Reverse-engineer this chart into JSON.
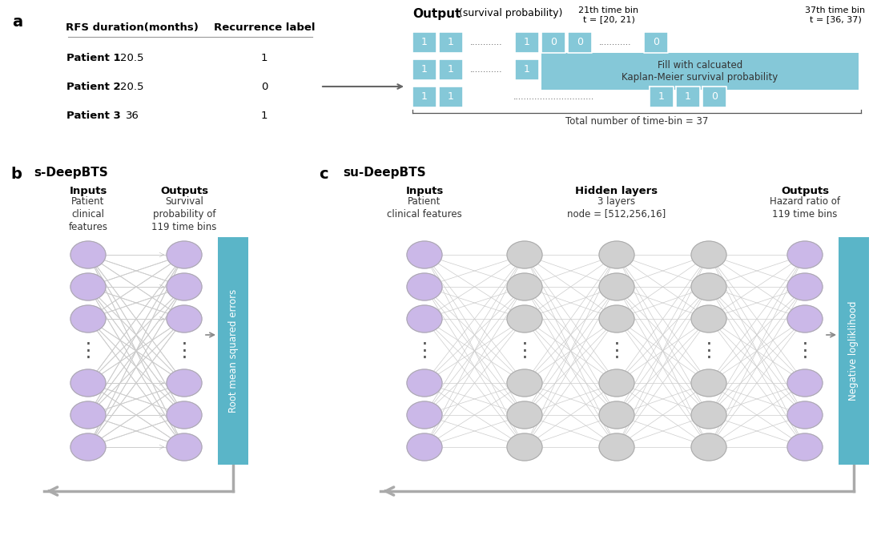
{
  "bg_color": "#ffffff",
  "node_color_purple": "#cbb8e8",
  "node_color_gray": "#d0d0d0",
  "light_blue": "#85c8d8",
  "box_blue": "#5ab5c8",
  "table_patients": [
    "Patient 1",
    "Patient 2",
    "Patient 3"
  ],
  "table_rfs": [
    "20.5",
    "20.5",
    "36"
  ],
  "table_recurrence": [
    "1",
    "0",
    "1"
  ],
  "label_a": "a",
  "label_b": "b",
  "label_c": "c",
  "title_sDeepBTS": "s-DeepBTS",
  "title_suDeepBTS": "su-DeepBTS",
  "col_header1": "RFS duration(months)",
  "col_header2": "Recurrence label",
  "output_label": "Output",
  "output_sublabel": " (survival probability)",
  "timebin21_label": "21th time bin",
  "timebin21_range": "t = [20, 21)",
  "timebin37_label": "37th time bin",
  "timebin37_range": "t = [36, 37)",
  "total_label": "Total number of time-bin = 37",
  "km_fill_text": "Fill with calcuated\nKaplan-Meier survival probability",
  "inputs_label_b": "Inputs",
  "inputs_sub_b": "Patient\nclinical\nfeatures",
  "outputs_label_b": "Outputs",
  "outputs_sub_b": "Survival\nprobability of\n119 time bins",
  "rmse_label": "Root mean squared errors",
  "inputs_label_c": "Inputs",
  "inputs_sub_c": "Patient\nclinical features",
  "hidden_label_c": "Hidden layers",
  "hidden_sub_c": "3 layers\nnode = [512,256,16]",
  "outputs_label_c": "Outputs",
  "outputs_sub_c": "Hazard ratio of\n119 time bins",
  "neglog_label": "Negative logliklihood",
  "arrow_color": "#aaaaaa",
  "dot_color": "#555555",
  "text_color": "#111111"
}
